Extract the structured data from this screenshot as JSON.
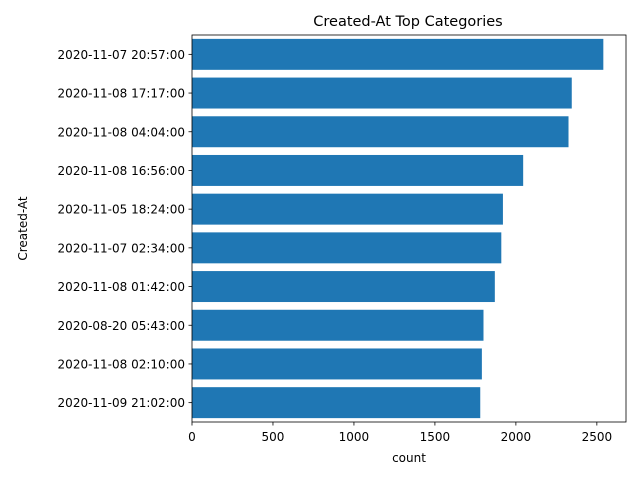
{
  "chart_data": {
    "type": "bar",
    "orientation": "horizontal",
    "title": "Created-At Top Categories",
    "xlabel": "count",
    "ylabel": "Created-At",
    "categories": [
      "2020-11-07 20:57:00",
      "2020-11-08 17:17:00",
      "2020-11-08 04:04:00",
      "2020-11-08 16:56:00",
      "2020-11-05 18:24:00",
      "2020-11-07 02:34:00",
      "2020-11-08 01:42:00",
      "2020-08-20 05:43:00",
      "2020-11-08 02:10:00",
      "2020-11-09 21:02:00"
    ],
    "values": [
      2540,
      2345,
      2325,
      2045,
      1920,
      1910,
      1870,
      1800,
      1790,
      1780
    ],
    "xlim": [
      0,
      2680
    ],
    "xticks": [
      0,
      500,
      1000,
      1500,
      2000,
      2500
    ],
    "grid": false,
    "bar_color": "#1f77b4"
  }
}
